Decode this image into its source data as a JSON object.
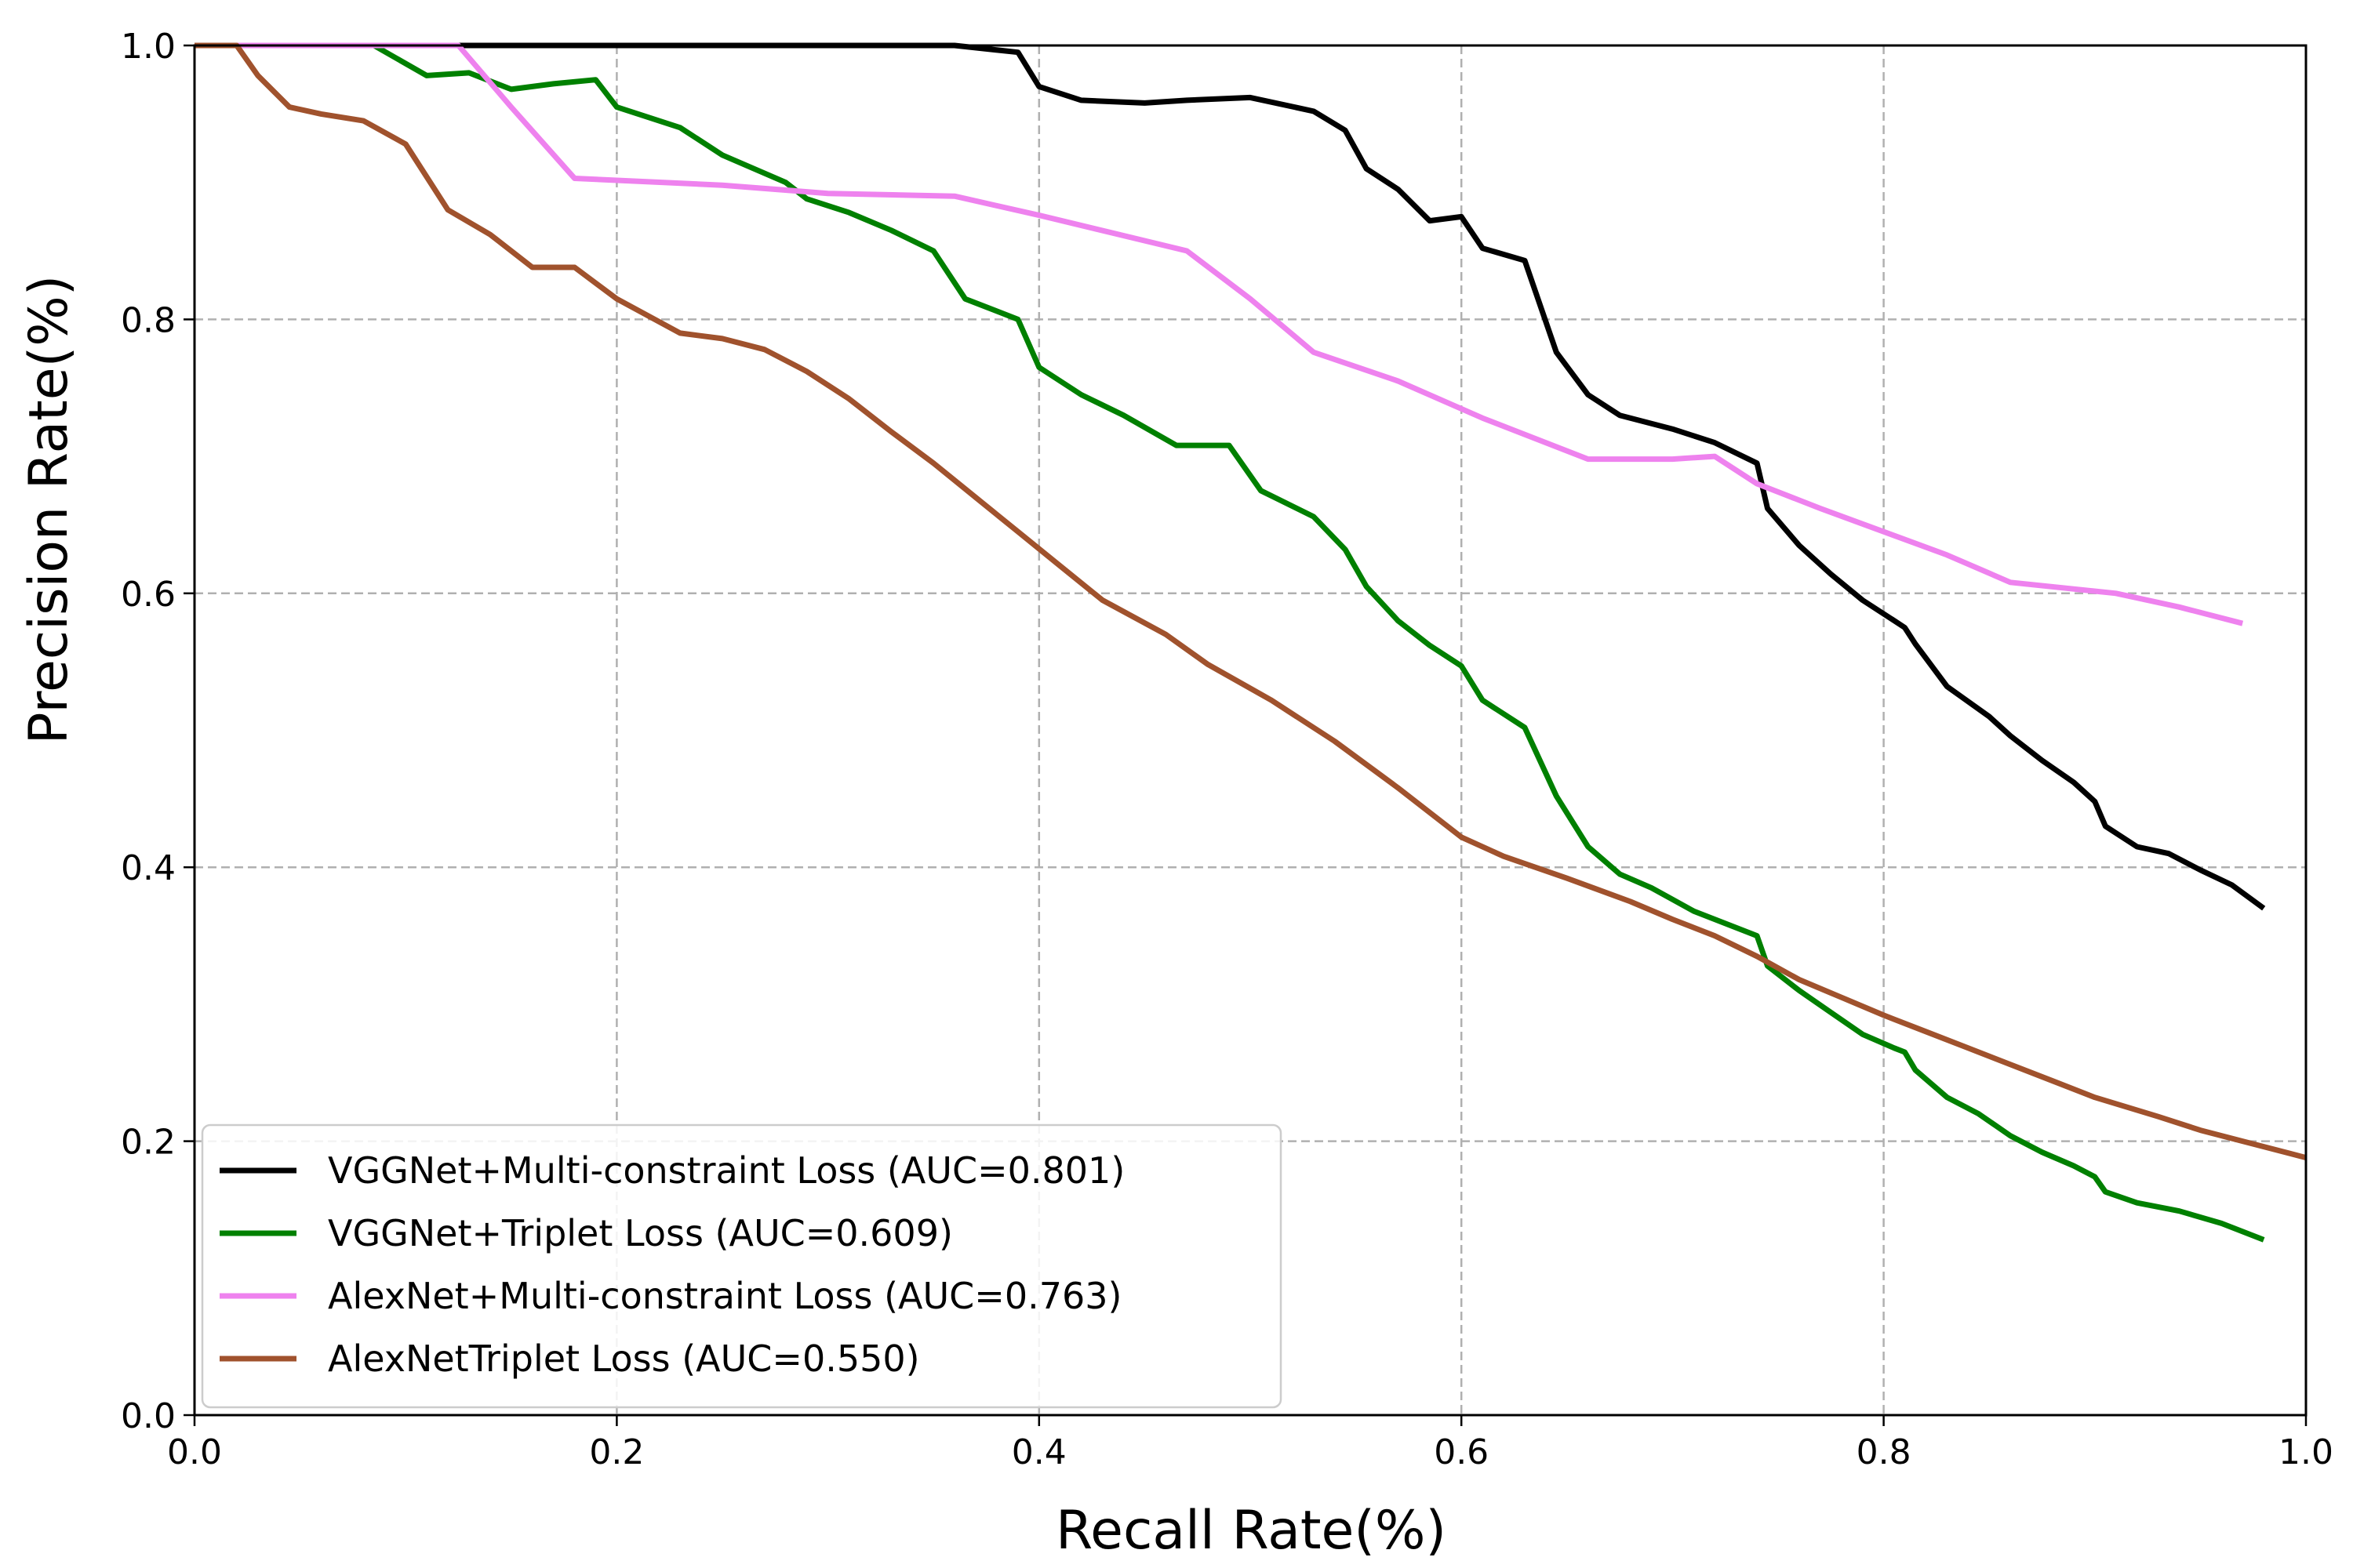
{
  "chart_data": {
    "type": "line",
    "title": "",
    "xlabel": "Recall Rate(%)",
    "ylabel": "Precision Rate(%)",
    "xlim": [
      0.0,
      1.0
    ],
    "ylim": [
      0.0,
      1.0
    ],
    "xticks": [
      "0.0",
      "0.2",
      "0.4",
      "0.6",
      "0.8",
      "1.0"
    ],
    "yticks": [
      "0.0",
      "0.2",
      "0.4",
      "0.6",
      "0.8",
      "1.0"
    ],
    "grid": true,
    "legend_position": "lower-left",
    "series": [
      {
        "name": "VGGNet+Multi-constraint Loss (AUC=0.801)",
        "color": "#000000",
        "x": [
          0.0,
          0.05,
          0.1,
          0.15,
          0.2,
          0.25,
          0.3,
          0.36,
          0.39,
          0.4,
          0.42,
          0.45,
          0.47,
          0.5,
          0.53,
          0.545,
          0.555,
          0.57,
          0.585,
          0.6,
          0.61,
          0.63,
          0.645,
          0.66,
          0.675,
          0.7,
          0.72,
          0.74,
          0.745,
          0.76,
          0.775,
          0.79,
          0.805,
          0.81,
          0.815,
          0.83,
          0.85,
          0.86,
          0.875,
          0.89,
          0.9,
          0.905,
          0.92,
          0.935,
          0.95,
          0.965,
          0.98
        ],
        "y": [
          1.0,
          1.0,
          1.0,
          1.0,
          1.0,
          1.0,
          1.0,
          1.0,
          0.995,
          0.97,
          0.96,
          0.958,
          0.96,
          0.962,
          0.952,
          0.938,
          0.91,
          0.895,
          0.872,
          0.875,
          0.852,
          0.843,
          0.776,
          0.745,
          0.73,
          0.72,
          0.71,
          0.695,
          0.662,
          0.635,
          0.614,
          0.595,
          0.58,
          0.575,
          0.563,
          0.532,
          0.51,
          0.496,
          0.478,
          0.462,
          0.448,
          0.43,
          0.415,
          0.41,
          0.398,
          0.387,
          0.37
        ]
      },
      {
        "name": "VGGNet+Triplet Loss (AUC=0.609)",
        "color": "#008000",
        "x": [
          0.0,
          0.05,
          0.085,
          0.11,
          0.13,
          0.15,
          0.17,
          0.19,
          0.2,
          0.23,
          0.25,
          0.28,
          0.29,
          0.31,
          0.33,
          0.35,
          0.365,
          0.39,
          0.4,
          0.42,
          0.44,
          0.465,
          0.49,
          0.505,
          0.53,
          0.545,
          0.555,
          0.57,
          0.585,
          0.6,
          0.61,
          0.63,
          0.645,
          0.66,
          0.675,
          0.69,
          0.71,
          0.73,
          0.74,
          0.745,
          0.76,
          0.775,
          0.79,
          0.805,
          0.81,
          0.815,
          0.83,
          0.845,
          0.86,
          0.875,
          0.89,
          0.9,
          0.905,
          0.92,
          0.94,
          0.96,
          0.98
        ],
        "y": [
          1.0,
          1.0,
          1.0,
          0.978,
          0.98,
          0.968,
          0.972,
          0.975,
          0.955,
          0.94,
          0.92,
          0.9,
          0.888,
          0.878,
          0.865,
          0.85,
          0.815,
          0.8,
          0.765,
          0.745,
          0.73,
          0.708,
          0.708,
          0.675,
          0.656,
          0.632,
          0.605,
          0.58,
          0.562,
          0.547,
          0.522,
          0.502,
          0.452,
          0.415,
          0.395,
          0.385,
          0.368,
          0.356,
          0.35,
          0.328,
          0.31,
          0.294,
          0.278,
          0.268,
          0.265,
          0.252,
          0.232,
          0.22,
          0.204,
          0.192,
          0.182,
          0.174,
          0.163,
          0.155,
          0.149,
          0.14,
          0.128
        ]
      },
      {
        "name": "AlexNet+Multi-constraint Loss (AUC=0.763)",
        "color": "#EE82EE",
        "x": [
          0.0,
          0.05,
          0.1,
          0.125,
          0.15,
          0.18,
          0.25,
          0.3,
          0.36,
          0.4,
          0.47,
          0.5,
          0.53,
          0.57,
          0.61,
          0.66,
          0.7,
          0.72,
          0.74,
          0.77,
          0.83,
          0.86,
          0.91,
          0.94,
          0.97
        ],
        "y": [
          1.0,
          1.0,
          1.0,
          1.0,
          0.955,
          0.903,
          0.898,
          0.892,
          0.89,
          0.876,
          0.85,
          0.815,
          0.776,
          0.755,
          0.728,
          0.698,
          0.698,
          0.7,
          0.68,
          0.662,
          0.628,
          0.608,
          0.6,
          0.59,
          0.578
        ]
      },
      {
        "name": "AlexNetTriplet Loss (AUC=0.550)",
        "color": "#A0522D",
        "x": [
          0.0,
          0.02,
          0.03,
          0.045,
          0.06,
          0.08,
          0.1,
          0.12,
          0.14,
          0.16,
          0.18,
          0.2,
          0.23,
          0.25,
          0.27,
          0.29,
          0.31,
          0.33,
          0.35,
          0.37,
          0.39,
          0.41,
          0.43,
          0.46,
          0.48,
          0.51,
          0.54,
          0.57,
          0.6,
          0.62,
          0.65,
          0.68,
          0.7,
          0.72,
          0.74,
          0.76,
          0.78,
          0.8,
          0.82,
          0.84,
          0.86,
          0.88,
          0.9,
          0.93,
          0.95,
          0.97,
          1.0
        ],
        "y": [
          1.0,
          1.0,
          0.978,
          0.955,
          0.95,
          0.945,
          0.928,
          0.88,
          0.862,
          0.838,
          0.838,
          0.815,
          0.79,
          0.786,
          0.778,
          0.762,
          0.742,
          0.718,
          0.695,
          0.67,
          0.645,
          0.62,
          0.595,
          0.57,
          0.548,
          0.522,
          0.492,
          0.458,
          0.422,
          0.408,
          0.392,
          0.375,
          0.362,
          0.35,
          0.335,
          0.318,
          0.305,
          0.292,
          0.28,
          0.268,
          0.256,
          0.244,
          0.232,
          0.218,
          0.208,
          0.2,
          0.188
        ]
      }
    ]
  }
}
